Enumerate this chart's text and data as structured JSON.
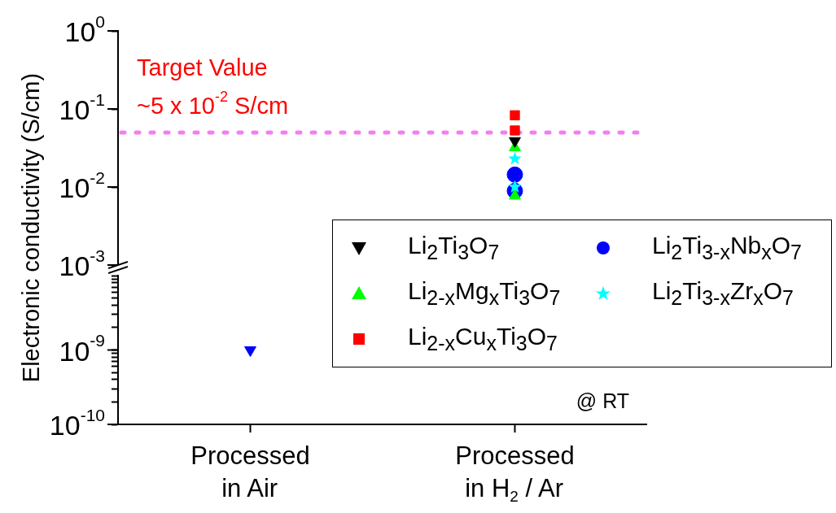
{
  "chart_data": [
    {
      "type": "scatter",
      "ylabel": "Electronic conductivity (S/cm)",
      "categories": [
        "Processed\nin Air",
        "Processed\nin H$_{2}$ / Ar"
      ],
      "tick_labels": "y",
      "log": true,
      "ylim": [
        0.001,
        1
      ],
      "yticks": [
        {
          "value": 0.001,
          "label": "10$^{-3}$"
        },
        {
          "value": 0.01,
          "label": "10$^{-2}$"
        },
        {
          "value": 0.1,
          "label": "10$^{-1}$"
        },
        {
          "value": 1,
          "label": "10$^{0}$"
        }
      ],
      "legend": "bottom right",
      "ref_lines": [
        {
          "axis": "y",
          "value": 0.05,
          "label": "Target Value\n~5 x 10$^{-2}$ S/cm",
          "color": "#f27ff2",
          "line_style": "dotted"
        }
      ],
      "series": [
        {
          "name": "Li$_{2}$Ti$_{3}$O$_{7}$",
          "color": "#000000",
          "marker": "triangle-down",
          "x": [
            "Processed\nin H$_{2}$ / Ar"
          ],
          "values": [
            0.039
          ]
        },
        {
          "name": "Li$_{2-x}$Mg$_{x}$Ti$_{3}$O$_{7}$",
          "color": "#00ff00",
          "marker": "triangle",
          "x": [
            "Processed\nin H$_{2}$ / Ar",
            "Processed\nin H$_{2}$ / Ar"
          ],
          "values": [
            0.032,
            0.0077
          ]
        },
        {
          "name": "Li$_{2-x}$Cu$_{x}$Ti$_{3}$O$_{7}$",
          "color": "#ff0000",
          "marker": "square",
          "x": [
            "Processed\nin H$_{2}$ / Ar",
            "Processed\nin H$_{2}$ / Ar"
          ],
          "values": [
            0.083,
            0.053
          ]
        },
        {
          "name": "Li$_{2}$Ti$_{3-x}$Nb$_{x}$O$_{7}$",
          "color": "#0000ff",
          "marker": "circle",
          "x": [
            "Processed\nin H$_{2}$ / Ar",
            "Processed\nin H$_{2}$ / Ar"
          ],
          "values": [
            0.0144,
            0.0089
          ]
        },
        {
          "name": "Li$_{2}$Ti$_{3-x}$Zr$_{x}$O$_{7}$",
          "color": "#00ffff",
          "marker": "star",
          "x": [
            "Processed\nin H$_{2}$ / Ar",
            "Processed\nin H$_{2}$ / Ar"
          ],
          "values": [
            0.023,
            0.01
          ]
        }
      ]
    },
    {
      "type": "scatter",
      "categories": [
        "Processed\nin Air",
        "Processed\nin H$_{2}$ / Ar"
      ],
      "log": true,
      "ylim": [
        1e-10,
        1e-08
      ],
      "yticks": [
        {
          "value": 1e-10,
          "label": "10$^{-10}$"
        },
        {
          "value": 2e-10,
          "label": null
        },
        {
          "value": 3e-10,
          "label": null
        },
        {
          "value": 4e-10,
          "label": null
        },
        {
          "value": 5e-10,
          "label": null
        },
        {
          "value": 6e-10,
          "label": null
        },
        {
          "value": 7e-10,
          "label": null
        },
        {
          "value": 8e-10,
          "label": null
        },
        {
          "value": 9e-10,
          "label": null
        },
        {
          "value": 1e-09,
          "label": "10$^{-9}$"
        },
        {
          "value": 2e-09,
          "label": null
        },
        {
          "value": 3e-09,
          "label": null
        },
        {
          "value": 4e-09,
          "label": null
        },
        {
          "value": 5e-09,
          "label": null
        },
        {
          "value": 6e-09,
          "label": null
        },
        {
          "value": 7e-09,
          "label": null
        },
        {
          "value": 8e-09,
          "label": null
        },
        {
          "value": 9e-09,
          "label": null
        },
        {
          "value": 1e-08,
          "label": null
        }
      ],
      "annotations": [
        "@ RT"
      ],
      "series": [
        {
          "color": "#0000ff",
          "marker": "triangle-down",
          "x": [
            "Processed\nin Air"
          ],
          "values": [
            1e-09
          ]
        }
      ]
    }
  ]
}
